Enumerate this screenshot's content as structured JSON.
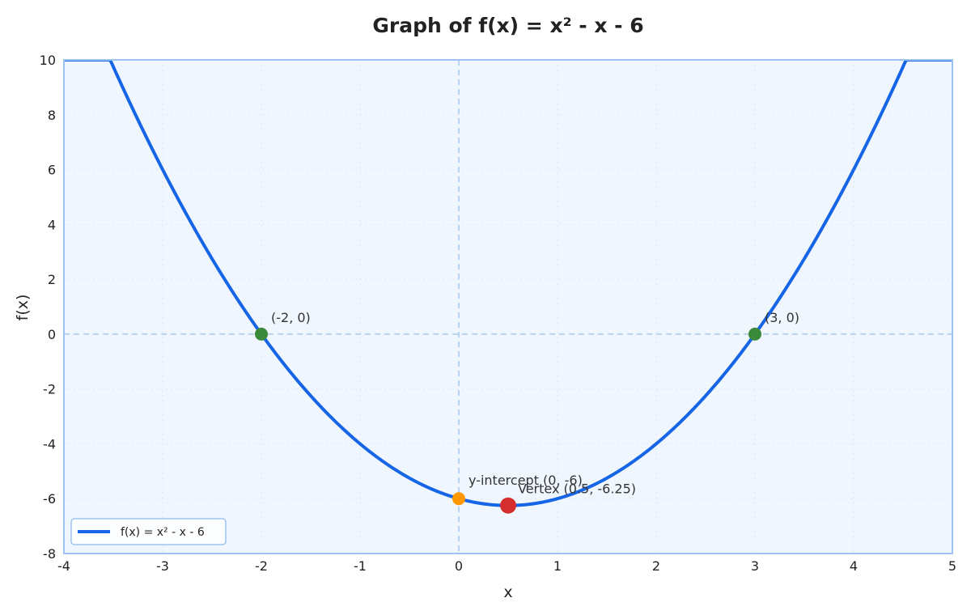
{
  "chart_data": {
    "type": "line",
    "title": "Graph of f(x) = x² - x - 6",
    "xlabel": "x",
    "ylabel": "f(x)",
    "xlim": [
      -4,
      5
    ],
    "ylim": [
      -8,
      10
    ],
    "xticks": [
      -4,
      -3,
      -2,
      -1,
      0,
      1,
      2,
      3,
      4,
      5
    ],
    "yticks": [
      -8,
      -6,
      -4,
      -2,
      0,
      2,
      4,
      6,
      8,
      10
    ],
    "grid": true,
    "legend_position": "bottom-left",
    "function": {
      "a": 1,
      "b": -1,
      "c": -6
    },
    "series": [
      {
        "name": "f(x) = x² - x - 6",
        "color": "#1565e6"
      }
    ],
    "points": [
      {
        "label": "(-2, 0)",
        "x": -2,
        "y": 0,
        "color": "#3a8a3a"
      },
      {
        "label": "(3, 0)",
        "x": 3,
        "y": 0,
        "color": "#3a8a3a"
      },
      {
        "label": "y-intercept (0, -6)",
        "x": 0,
        "y": -6,
        "color": "#ff9800"
      },
      {
        "label": "Vertex (0.5, -6.25)",
        "x": 0.5,
        "y": -6.25,
        "color": "#d32f2f"
      }
    ],
    "colors": {
      "plot_background": "#f0f6fd",
      "frame": "#9ec3f0",
      "zero_axes": "#b8d3f0",
      "grid": "#dde8f4"
    }
  }
}
